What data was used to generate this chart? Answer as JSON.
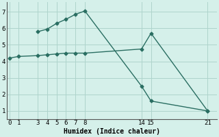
{
  "line1_x": [
    0,
    1,
    3,
    4,
    5,
    6,
    7,
    8,
    14,
    15,
    21
  ],
  "line1_y": [
    4.2,
    4.3,
    4.35,
    4.4,
    4.45,
    4.5,
    4.5,
    4.5,
    4.75,
    5.7,
    1.0
  ],
  "line2_x": [
    3,
    4,
    5,
    6,
    7,
    8,
    14,
    15,
    21
  ],
  "line2_y": [
    5.8,
    5.95,
    6.3,
    6.55,
    6.85,
    7.05,
    2.5,
    1.6,
    1.0
  ],
  "line_color": "#2a6e62",
  "bg_color": "#d5f0ea",
  "grid_color": "#aed4cc",
  "xlabel": "Humidex (Indice chaleur)",
  "xticks": [
    0,
    1,
    3,
    4,
    5,
    6,
    7,
    8,
    14,
    15,
    21
  ],
  "yticks": [
    1,
    2,
    3,
    4,
    5,
    6,
    7
  ],
  "xlim": [
    -0.3,
    22
  ],
  "ylim": [
    0.5,
    7.6
  ],
  "marker": "D",
  "markersize": 2.5
}
